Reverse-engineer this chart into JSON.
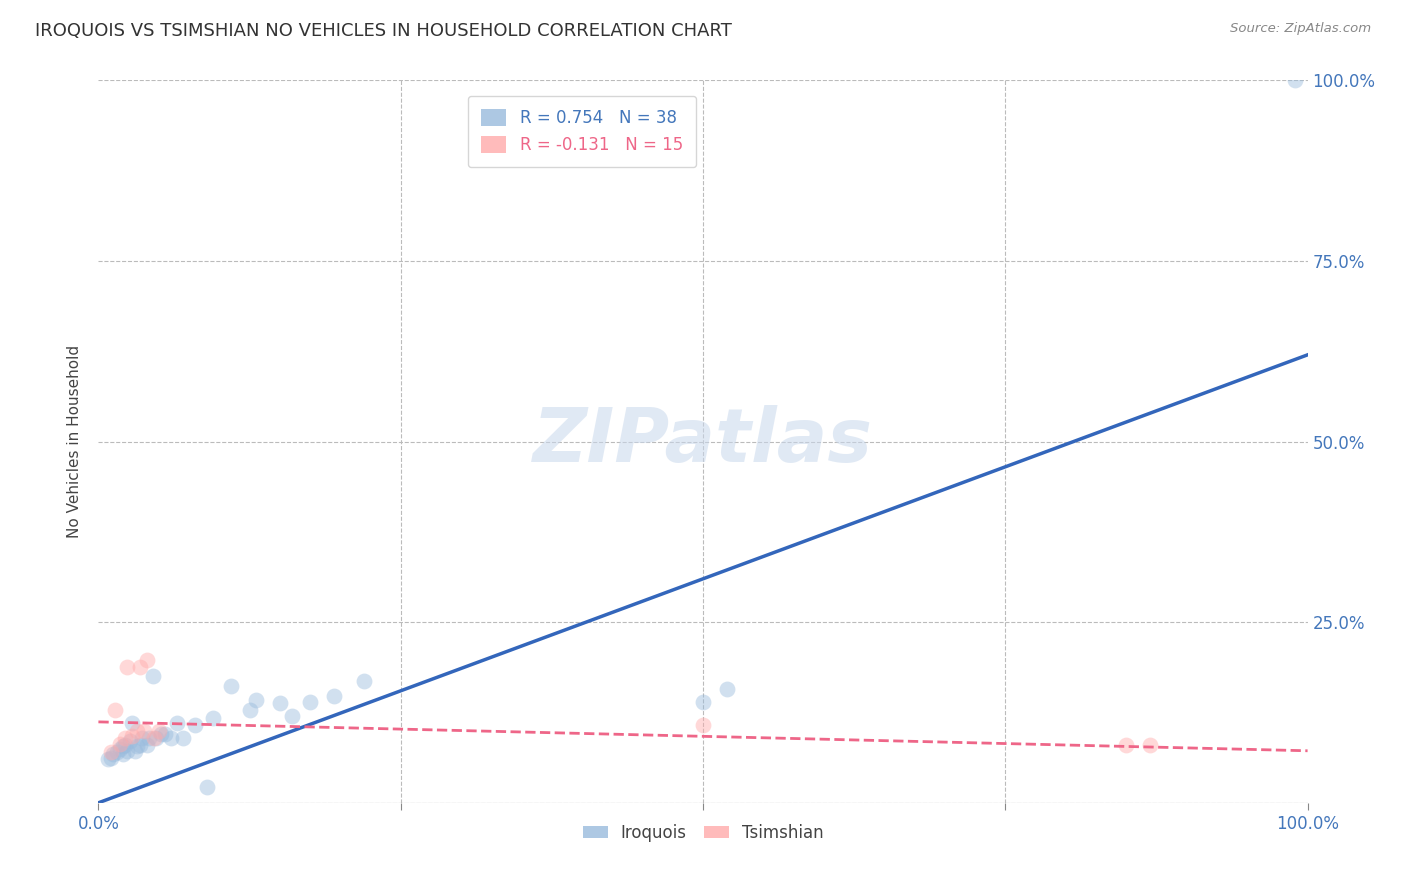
{
  "title": "IROQUOIS VS TSIMSHIAN NO VEHICLES IN HOUSEHOLD CORRELATION CHART",
  "source": "Source: ZipAtlas.com",
  "ylabel_label": "No Vehicles in Household",
  "iroquois_color": "#99BBDD",
  "tsimshian_color": "#FFAAAA",
  "iroquois_line_color": "#3366BB",
  "tsimshian_line_color": "#EE6688",
  "grid_color": "#BBBBBB",
  "tick_color": "#4477BB",
  "iroquois_x": [
    0.008,
    0.01,
    0.012,
    0.015,
    0.018,
    0.02,
    0.02,
    0.022,
    0.024,
    0.026,
    0.028,
    0.03,
    0.032,
    0.034,
    0.036,
    0.04,
    0.042,
    0.045,
    0.048,
    0.052,
    0.055,
    0.06,
    0.065,
    0.07,
    0.08,
    0.09,
    0.095,
    0.11,
    0.125,
    0.13,
    0.15,
    0.16,
    0.175,
    0.195,
    0.22,
    0.5,
    0.52,
    0.99
  ],
  "iroquois_y": [
    0.06,
    0.062,
    0.068,
    0.07,
    0.075,
    0.068,
    0.078,
    0.08,
    0.072,
    0.085,
    0.11,
    0.072,
    0.078,
    0.08,
    0.09,
    0.08,
    0.09,
    0.175,
    0.09,
    0.095,
    0.095,
    0.09,
    0.11,
    0.09,
    0.108,
    0.022,
    0.118,
    0.162,
    0.128,
    0.142,
    0.138,
    0.12,
    0.14,
    0.148,
    0.168,
    0.14,
    0.158,
    1.0
  ],
  "tsimshian_x": [
    0.01,
    0.014,
    0.018,
    0.022,
    0.024,
    0.028,
    0.032,
    0.034,
    0.038,
    0.04,
    0.046,
    0.05,
    0.5,
    0.85,
    0.87
  ],
  "tsimshian_y": [
    0.07,
    0.128,
    0.082,
    0.09,
    0.188,
    0.092,
    0.1,
    0.188,
    0.1,
    0.198,
    0.09,
    0.1,
    0.108,
    0.08,
    0.08
  ],
  "iroquois_trend_x": [
    0.0,
    1.0
  ],
  "iroquois_trend_y": [
    0.0,
    0.62
  ],
  "tsimshian_trend_x": [
    0.0,
    1.0
  ],
  "tsimshian_trend_y": [
    0.112,
    0.072
  ],
  "xlim": [
    0.0,
    1.0
  ],
  "ylim": [
    0.0,
    1.0
  ],
  "marker_size": 130,
  "marker_alpha": 0.45,
  "watermark_text": "ZIPatlas",
  "legend_iroquois": "R = 0.754   N = 38",
  "legend_tsimshian": "R = -0.131   N = 15"
}
